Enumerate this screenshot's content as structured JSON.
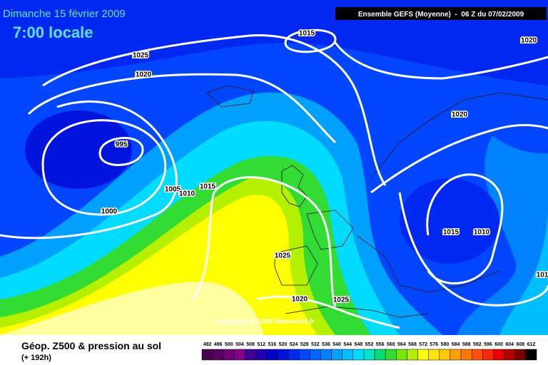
{
  "header": {
    "date": "Dimanche 15 février 2009",
    "time": "7:00 locale",
    "model": "Ensemble GEFS (Moyenne)  -  06 Z du 07/02/2009"
  },
  "copyright": "Copyright © 2008 Meteociel.fr",
  "isobar_labels": [
    1015,
    1025,
    1020,
    1020,
    995,
    1020,
    1005,
    1010,
    1015,
    1000,
    1015,
    1010,
    1025,
    1020,
    1025,
    "101"
  ],
  "legend": {
    "title": "Géop. Z500 & pression au sol",
    "lead": "(+ 192h)",
    "values": [
      492,
      496,
      500,
      504,
      508,
      512,
      516,
      520,
      524,
      528,
      532,
      536,
      540,
      544,
      548,
      552,
      556,
      560,
      564,
      568,
      572,
      576,
      580,
      584,
      588,
      592,
      596,
      600,
      604,
      608,
      612
    ],
    "colors": [
      "#4b0050",
      "#5a0064",
      "#6e0078",
      "#82008c",
      "#3c0096",
      "#1e00b4",
      "#0000c8",
      "#0014dc",
      "#0028f0",
      "#0046ff",
      "#0064ff",
      "#0082ff",
      "#00a0ff",
      "#00beff",
      "#00dcff",
      "#00e6c8",
      "#00dc78",
      "#32dc32",
      "#78e600",
      "#b4f000",
      "#ffff00",
      "#ffe600",
      "#ffc800",
      "#ffa000",
      "#ff7800",
      "#ff5000",
      "#ff2800",
      "#e60000",
      "#b40000",
      "#780000",
      "#000000"
    ]
  }
}
